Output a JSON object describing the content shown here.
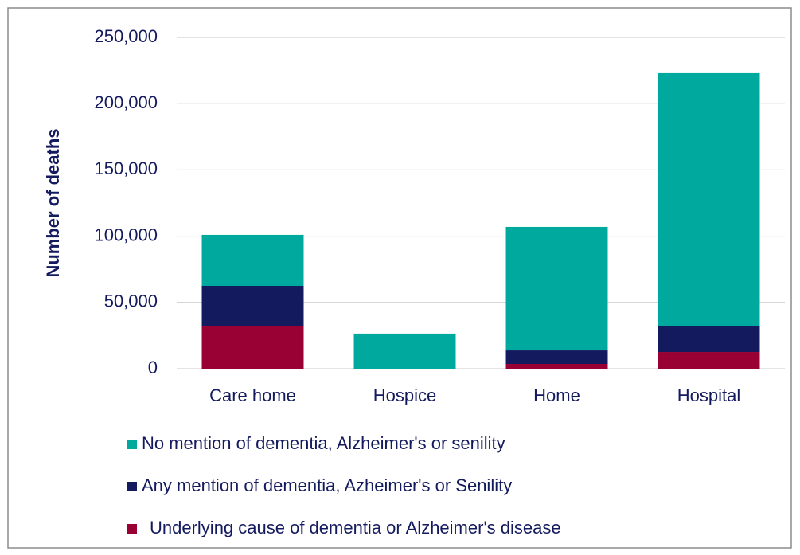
{
  "chart_data": {
    "type": "stacked_bar",
    "y_label": "Number of deaths",
    "categories": [
      "Care home",
      "Hospice",
      "Home",
      "Hospital"
    ],
    "series": [
      {
        "name": "No mention of dementia, Alzheimer's or senility",
        "color": "#00a99d",
        "values": [
          38500,
          26500,
          93200,
          191100
        ]
      },
      {
        "name": "Any mention of dementia, Azheimer's or Senility",
        "color": "#141a5e",
        "values": [
          30500,
          0,
          10200,
          19300
        ]
      },
      {
        "name": "Underlying cause of dementia or Alzheimer's disease",
        "color": "#990033",
        "values": [
          32000,
          0,
          3600,
          12600
        ]
      }
    ],
    "ylim": [
      0,
      250000
    ],
    "yticks": [
      0,
      {
        "value": 50000,
        "label": "50,000"
      },
      {
        "value": 100000,
        "label": "100,000"
      },
      {
        "value": 150000,
        "label": "150,000"
      },
      {
        "value": 200000,
        "label": "200,000"
      },
      {
        "value": 250000,
        "label": "250,000"
      }
    ],
    "grid": true,
    "legend": "bottom"
  }
}
